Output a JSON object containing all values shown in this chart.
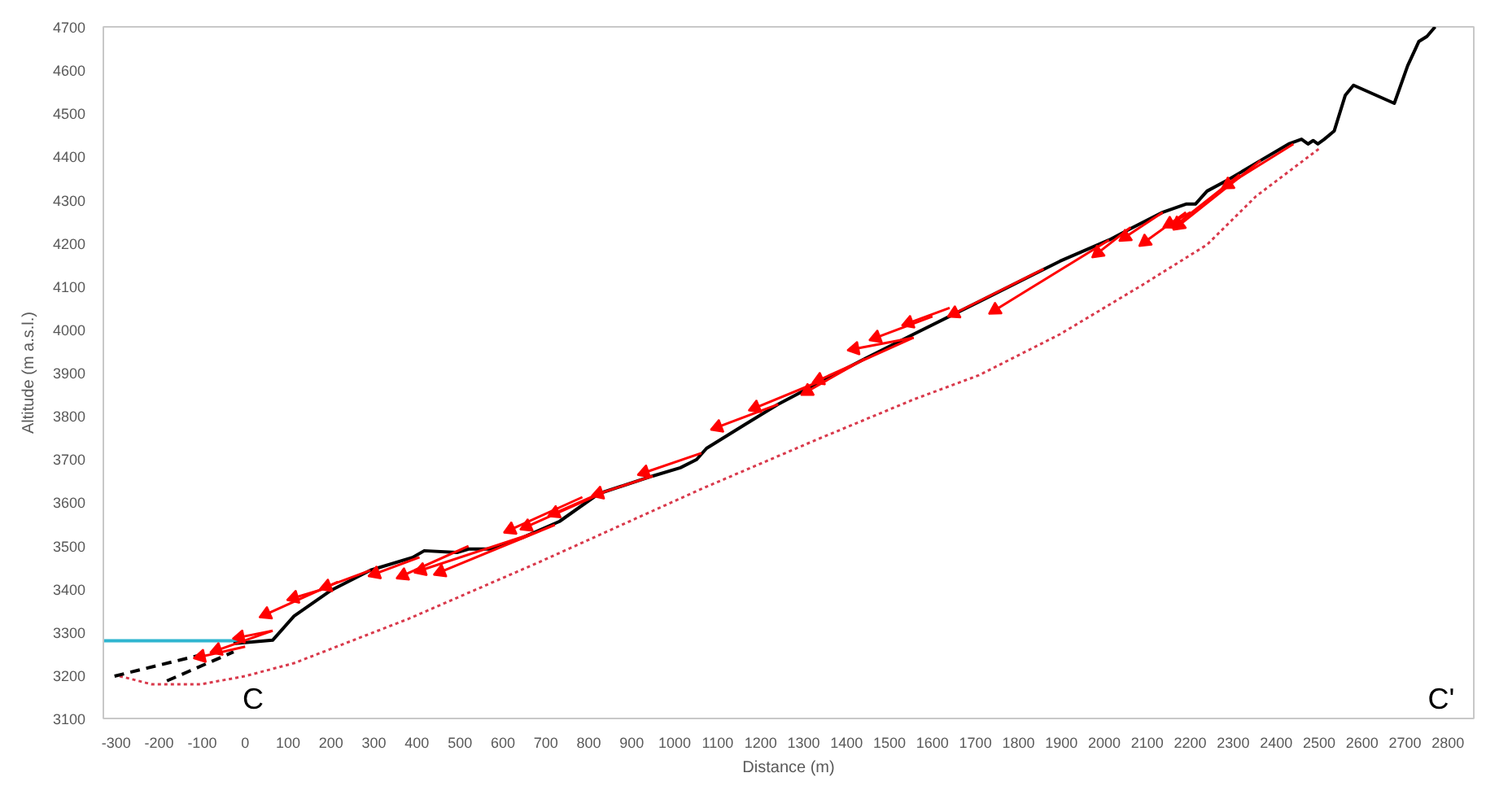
{
  "chart_data": {
    "type": "line",
    "xlabel": "Distance (m)",
    "ylabel": "Altitude (m a.s.l.)",
    "xlim": [
      -330,
      2860
    ],
    "ylim": [
      3100,
      4700
    ],
    "xticks": [
      -300,
      -200,
      -100,
      0,
      100,
      200,
      300,
      400,
      500,
      600,
      700,
      800,
      900,
      1000,
      1100,
      1200,
      1300,
      1400,
      1500,
      1600,
      1700,
      1800,
      1900,
      2000,
      2100,
      2200,
      2300,
      2400,
      2500,
      2600,
      2700,
      2800
    ],
    "yticks": [
      3100,
      3200,
      3300,
      3400,
      3500,
      3600,
      3700,
      3800,
      3900,
      4000,
      4100,
      4200,
      4300,
      4400,
      4500,
      4600,
      4700
    ],
    "grid": false,
    "annotations": [
      "C",
      "C'"
    ],
    "series": [
      {
        "color": "#2fb5d0",
        "line_style": "solid",
        "x": [
          -330,
          0
        ],
        "values": [
          3280,
          3280
        ]
      },
      {
        "color": "#d9394b",
        "line_style": "dotted",
        "x": [
          -292,
          -217,
          -103,
          0,
          114,
          379,
          683,
          1062,
          1328,
          1556,
          1708,
          1897,
          2087,
          2239,
          2353,
          2505
        ],
        "values": [
          3198,
          3179,
          3179,
          3198,
          3228,
          3330,
          3461,
          3631,
          3744,
          3838,
          3894,
          3989,
          4102,
          4196,
          4308,
          4422
        ]
      },
      {
        "color": "#000000",
        "line_style": "dashed",
        "x": [
          -304,
          -103
        ],
        "values": [
          3198,
          3247
        ]
      },
      {
        "color": "#000000",
        "line_style": "dashed",
        "x": [
          -182,
          -27
        ],
        "values": [
          3187,
          3254
        ]
      },
      {
        "color": "#000000",
        "line_style": "solid",
        "x": [
          -27,
          64,
          114,
          201,
          292,
          391,
          417,
          493,
          520,
          569,
          645,
          732,
          823,
          949,
          1013,
          1051,
          1074,
          1165,
          1241,
          1355,
          1442,
          1556,
          1708,
          1897,
          2011,
          2061,
          2136,
          2190,
          2212,
          2239,
          2288,
          2364,
          2429,
          2459,
          2474,
          2486,
          2497,
          2512,
          2535,
          2561,
          2580,
          2675,
          2706,
          2732,
          2751,
          2770
        ],
        "values": [
          3273,
          3281,
          3337,
          3397,
          3443,
          3473,
          3488,
          3484,
          3492,
          3492,
          3518,
          3556,
          3620,
          3661,
          3680,
          3699,
          3725,
          3781,
          3827,
          3887,
          3932,
          3989,
          4064,
          4158,
          4207,
          4233,
          4271,
          4290,
          4290,
          4320,
          4346,
          4391,
          4429,
          4440,
          4429,
          4437,
          4429,
          4440,
          4459,
          4542,
          4565,
          4523,
          4610,
          4666,
          4678,
          4700
        ]
      },
      {
        "color": "#ff0000",
        "line_style": "solid",
        "marker": "triangle",
        "x": [
          0,
          -103,
          null,
          64,
          -65,
          null,
          64,
          -12,
          null,
          216,
          49,
          null,
          201,
          114,
          null,
          292,
          190,
          null,
          406,
          303,
          null,
          520,
          368,
          null,
          672,
          410,
          null,
          721,
          455,
          null,
          785,
          618,
          null,
          835,
          656,
          null,
          823,
          721,
          null,
          949,
          823,
          null,
          1062,
          930,
          null,
          1241,
          1100,
          null,
          1328,
          1188,
          null,
          1442,
          1309,
          null,
          1556,
          1336,
          null,
          1556,
          1419,
          null,
          1600,
          1469,
          null,
          1640,
          1545,
          null,
          1859,
          1651,
          null,
          2011,
          1746,
          null,
          2061,
          1985,
          null,
          2136,
          2049,
          null,
          2190,
          2095,
          null,
          2201,
          2152,
          null,
          2364,
          2174,
          null,
          2440,
          2288,
          null,
          2315,
          2171
        ],
        "values": [
          3266,
          3243,
          null,
          3303,
          3258,
          null,
          3303,
          3288,
          null,
          3416,
          3341,
          null,
          3405,
          3379,
          null,
          3443,
          3405,
          null,
          3473,
          3435,
          null,
          3499,
          3431,
          null,
          3529,
          3443,
          null,
          3548,
          3439,
          null,
          3612,
          3537,
          null,
          3623,
          3544,
          null,
          3620,
          3575,
          null,
          3661,
          3620,
          null,
          3714,
          3669,
          null,
          3827,
          3774,
          null,
          3876,
          3819,
          null,
          3932,
          3857,
          null,
          3981,
          3883,
          null,
          3981,
          3955,
          null,
          4030,
          3981,
          null,
          4050,
          4015,
          null,
          4140,
          4037,
          null,
          4207,
          4045,
          null,
          4236,
          4177,
          null,
          4271,
          4214,
          null,
          4271,
          4203,
          null,
          4271,
          4244,
          null,
          4391,
          4241,
          null,
          4429,
          4335,
          null,
          4358,
          4245
        ]
      }
    ]
  }
}
